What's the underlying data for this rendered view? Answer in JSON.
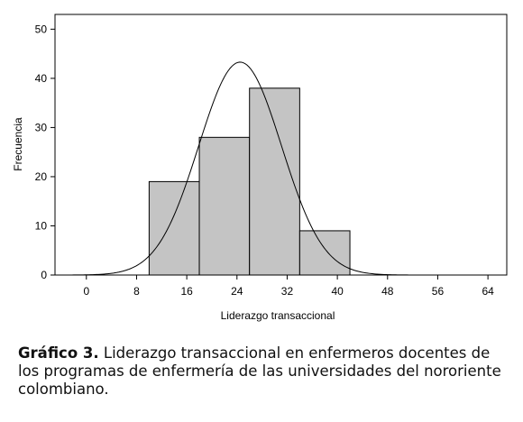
{
  "chart_data": {
    "type": "bar",
    "xlabel": "Liderazgo transaccional",
    "ylabel": "Frecuencia",
    "xlim": [
      -5,
      67
    ],
    "ylim": [
      0,
      53
    ],
    "xticks": [
      0,
      8,
      16,
      24,
      32,
      40,
      48,
      56,
      64
    ],
    "yticks": [
      0,
      10,
      20,
      30,
      40,
      50
    ],
    "bins": [
      {
        "start": 10,
        "end": 18,
        "value": 19
      },
      {
        "start": 18,
        "end": 26,
        "value": 28
      },
      {
        "start": 26,
        "end": 34,
        "value": 38
      },
      {
        "start": 34,
        "end": 42,
        "value": 9
      }
    ],
    "normal_curve": {
      "mean": 24.5,
      "peak": 43.3,
      "sd": 6.6
    },
    "bar_color": "#c4c4c4",
    "grid": false
  },
  "caption": {
    "label": "Gráfico 3.",
    "text": " Liderazgo transaccional en enfermeros docentes de los programas de enfermería de las universidades del nororiente colombiano."
  }
}
